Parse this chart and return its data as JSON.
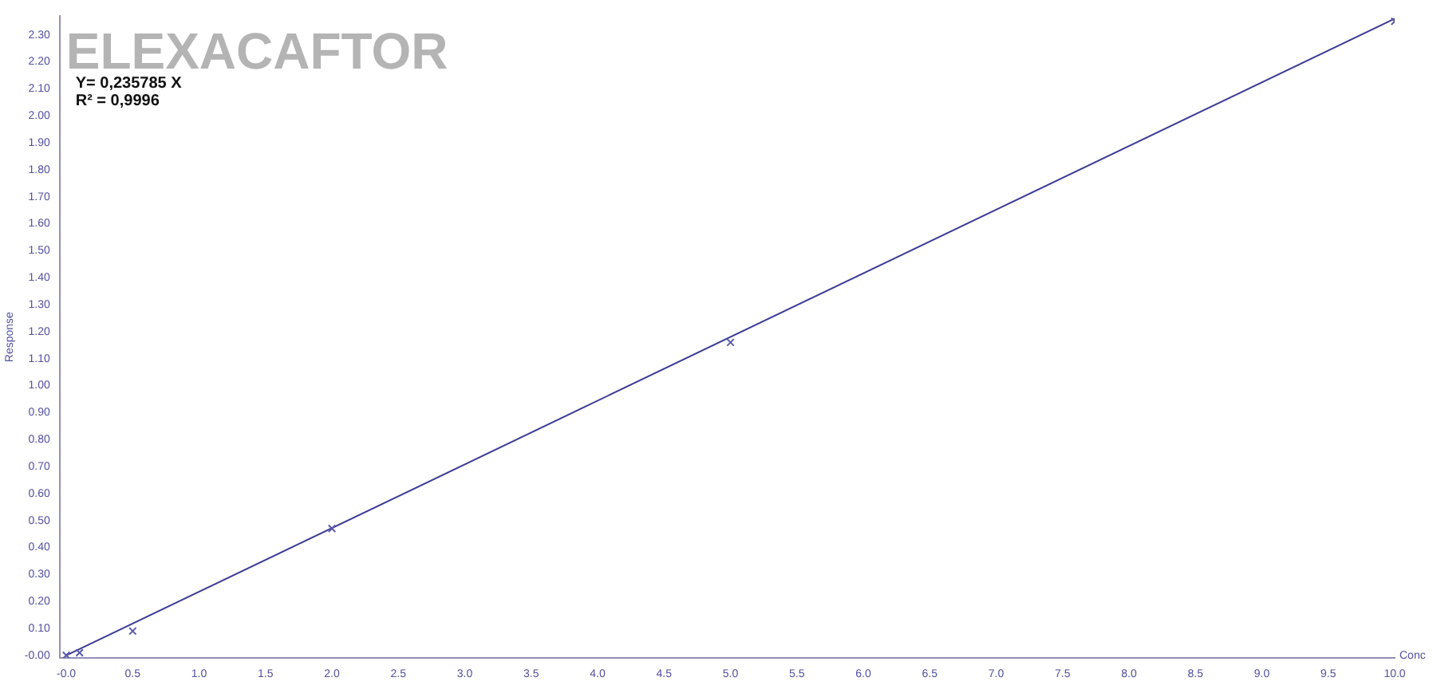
{
  "chart_data": {
    "type": "scatter",
    "title": "ELEXACAFTOR",
    "xlabel": "Conc",
    "ylabel": "Response",
    "annotations": [
      "Y= 0,235785 X",
      "R² = 0,9996"
    ],
    "series": [
      {
        "type": "scatter",
        "color": "#5a5aa8",
        "marker": "cross",
        "x": [
          0,
          0.1,
          0.5,
          2,
          5,
          10
        ],
        "values": [
          0,
          0.01,
          0.09,
          0.47,
          1.16,
          2.35
        ]
      },
      {
        "type": "line",
        "color": "#3c3c96",
        "marker": "none",
        "x": [
          0,
          10
        ],
        "values": [
          0,
          2.36
        ]
      }
    ],
    "xlim": [
      -0.05,
      10.0
    ],
    "ylim": [
      -0.01,
      2.37
    ],
    "xticks": [
      {
        "value": 0,
        "label": "-0.0"
      },
      {
        "value": 0.5,
        "label": "0.5"
      },
      {
        "value": 1,
        "label": "1.0"
      },
      {
        "value": 1.5,
        "label": "1.5"
      },
      {
        "value": 2,
        "label": "2.0"
      },
      {
        "value": 2.5,
        "label": "2.5"
      },
      {
        "value": 3,
        "label": "3.0"
      },
      {
        "value": 3.5,
        "label": "3.5"
      },
      {
        "value": 4,
        "label": "4.0"
      },
      {
        "value": 4.5,
        "label": "4.5"
      },
      {
        "value": 5,
        "label": "5.0"
      },
      {
        "value": 5.5,
        "label": "5.5"
      },
      {
        "value": 6,
        "label": "6.0"
      },
      {
        "value": 6.5,
        "label": "6.5"
      },
      {
        "value": 7,
        "label": "7.0"
      },
      {
        "value": 7.5,
        "label": "7.5"
      },
      {
        "value": 8,
        "label": "8.0"
      },
      {
        "value": 8.5,
        "label": "8.5"
      },
      {
        "value": 9,
        "label": "9.0"
      },
      {
        "value": 9.5,
        "label": "9.5"
      },
      {
        "value": 10,
        "label": "10.0"
      }
    ],
    "yticks": [
      {
        "value": 0,
        "label": "-0.00"
      },
      {
        "value": 0.1,
        "label": "0.10"
      },
      {
        "value": 0.2,
        "label": "0.20"
      },
      {
        "value": 0.3,
        "label": "0.30"
      },
      {
        "value": 0.4,
        "label": "0.40"
      },
      {
        "value": 0.5,
        "label": "0.50"
      },
      {
        "value": 0.6,
        "label": "0.60"
      },
      {
        "value": 0.7,
        "label": "0.70"
      },
      {
        "value": 0.8,
        "label": "0.80"
      },
      {
        "value": 0.9,
        "label": "0.90"
      },
      {
        "value": 1,
        "label": "1.00"
      },
      {
        "value": 1.1,
        "label": "1.10"
      },
      {
        "value": 1.2,
        "label": "1.20"
      },
      {
        "value": 1.3,
        "label": "1.30"
      },
      {
        "value": 1.4,
        "label": "1.40"
      },
      {
        "value": 1.5,
        "label": "1.50"
      },
      {
        "value": 1.6,
        "label": "1.60"
      },
      {
        "value": 1.7,
        "label": "1.70"
      },
      {
        "value": 1.8,
        "label": "1.80"
      },
      {
        "value": 1.9,
        "label": "1.90"
      },
      {
        "value": 2,
        "label": "2.00"
      },
      {
        "value": 2.1,
        "label": "2.10"
      },
      {
        "value": 2.2,
        "label": "2.20"
      },
      {
        "value": 2.3,
        "label": "2.30"
      }
    ],
    "grid": false,
    "legend": false
  }
}
